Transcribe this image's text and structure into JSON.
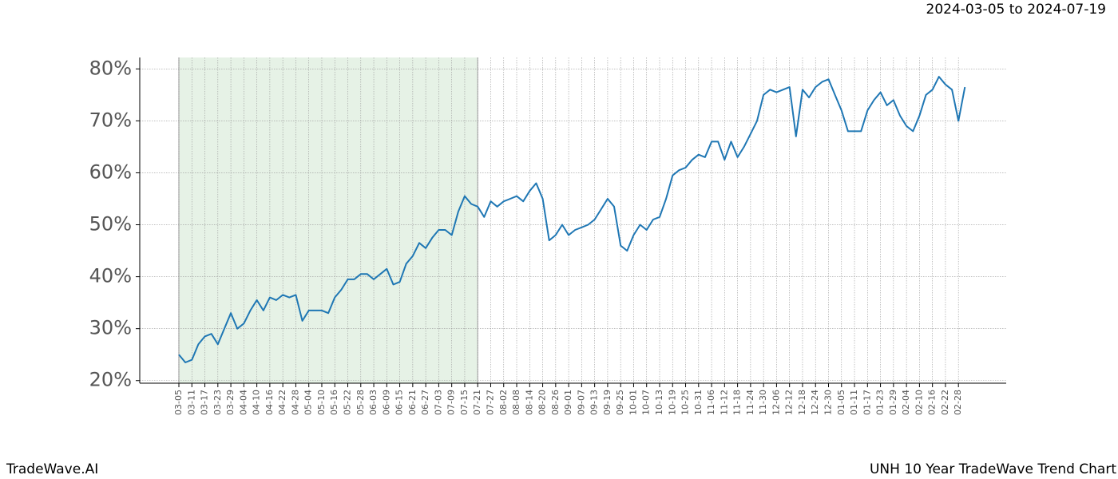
{
  "chart_data": {
    "type": "line",
    "subtitle": "2024-03-05 to 2024-07-19",
    "footer_left": "TradeWave.AI",
    "footer_right": "UNH 10 Year TradeWave Trend Chart",
    "categories": [
      "03-05",
      null,
      "03-11",
      null,
      "03-17",
      null,
      "03-23",
      null,
      "03-29",
      null,
      "04-04",
      null,
      "04-10",
      null,
      "04-16",
      null,
      "04-22",
      null,
      "04-28",
      null,
      "05-04",
      null,
      "05-10",
      null,
      "05-16",
      null,
      "05-22",
      null,
      "05-28",
      null,
      "06-03",
      null,
      "06-09",
      null,
      "06-15",
      null,
      "06-21",
      null,
      "06-27",
      null,
      "07-03",
      null,
      "07-09",
      null,
      "07-15",
      null,
      "07-21",
      null,
      "07-27",
      null,
      "08-02",
      null,
      "08-08",
      null,
      "08-14",
      null,
      "08-20",
      null,
      "08-26",
      null,
      "09-01",
      null,
      "09-07",
      null,
      "09-13",
      null,
      "09-19",
      null,
      "09-25",
      null,
      "10-01",
      null,
      "10-07",
      null,
      "10-13",
      null,
      "10-19",
      null,
      "10-25",
      null,
      "10-31",
      null,
      "11-06",
      null,
      "11-12",
      null,
      "11-18",
      null,
      "11-24",
      null,
      "11-30",
      null,
      "12-06",
      null,
      "12-12",
      null,
      "12-18",
      null,
      "12-24",
      null,
      "12-30",
      null,
      "01-05",
      null,
      "01-11",
      null,
      "01-17",
      null,
      "01-23",
      null,
      "01-29",
      null,
      "02-04",
      null,
      "02-10",
      null,
      "02-16",
      null,
      "02-22",
      null,
      "02-28",
      null
    ],
    "values": [
      25,
      23.5,
      24,
      27,
      28.5,
      29,
      27,
      30,
      33,
      30,
      31,
      33.5,
      35.5,
      33.5,
      36,
      35.5,
      36.5,
      36,
      36.5,
      31.5,
      33.5,
      33.5,
      33.5,
      33,
      36,
      37.5,
      39.5,
      39.5,
      40.5,
      40.5,
      39.5,
      40.5,
      41.5,
      38.5,
      39,
      42.5,
      44,
      46.5,
      45.5,
      47.5,
      49,
      49,
      48,
      52.5,
      55.5,
      54,
      53.5,
      51.5,
      54.5,
      53.5,
      54.5,
      55,
      55.5,
      54.5,
      56.5,
      58,
      55,
      47,
      48,
      50,
      48,
      49,
      49.5,
      50,
      51,
      53,
      55,
      53.5,
      46,
      45,
      48,
      50,
      49,
      51,
      51.5,
      55,
      59.5,
      60.5,
      61,
      62.5,
      63.5,
      63,
      66,
      66,
      62.5,
      66,
      63,
      65,
      67.5,
      70,
      75,
      76,
      75.5,
      76,
      76.5,
      67,
      76,
      74.5,
      76.5,
      77.5,
      78,
      75,
      72,
      68,
      68,
      68,
      72,
      74,
      75.5,
      73,
      74,
      71,
      69,
      68,
      71,
      75,
      76,
      78.5,
      77,
      76,
      70,
      76.5
    ],
    "color": "#1f77b4",
    "shade": [
      "03-05",
      "07-21"
    ],
    "shade_color": "#e6f2e6",
    "ylim": [
      19.5,
      82.2
    ],
    "yticks": [
      {
        "value": 20,
        "label": "20%"
      },
      {
        "value": 30,
        "label": "30%"
      },
      {
        "value": 40,
        "label": "40%"
      },
      {
        "value": 50,
        "label": "50%"
      },
      {
        "value": 60,
        "label": "60%"
      },
      {
        "value": 70,
        "label": "70%"
      },
      {
        "value": 80,
        "label": "80%"
      }
    ],
    "grid": true
  }
}
